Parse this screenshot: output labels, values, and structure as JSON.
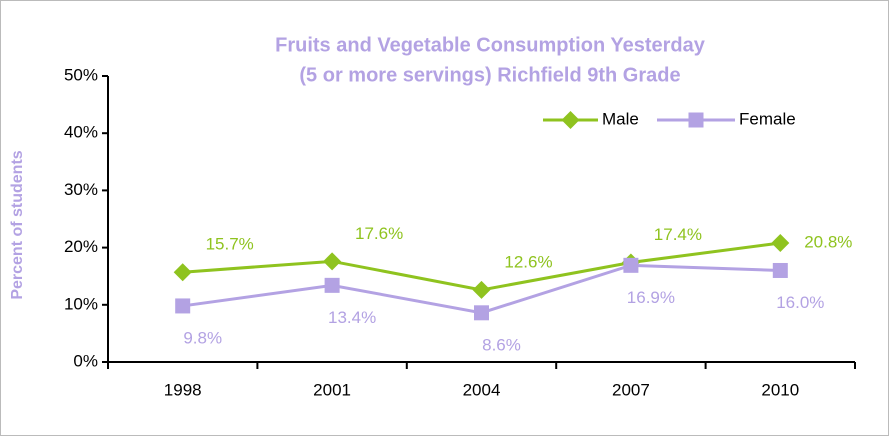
{
  "chart_data": {
    "type": "line",
    "title": [
      "Fruits and Vegetable Consumption Yesterday",
      "(5 or more servings) Richfield 9th Grade"
    ],
    "y_label": "Percent of students",
    "categories": [
      "1998",
      "2001",
      "2004",
      "2007",
      "2010"
    ],
    "series": [
      {
        "name": "Male",
        "color": "#8fc31f",
        "marker": "diamond",
        "values": [
          15.7,
          17.6,
          12.6,
          17.4,
          20.8
        ],
        "value_labels": [
          "15.7%",
          "17.6%",
          "12.6%",
          "17.4%",
          "20.8%"
        ]
      },
      {
        "name": "Female",
        "color": "#b3a2e3",
        "marker": "square",
        "values": [
          9.8,
          13.4,
          8.6,
          16.9,
          16.0
        ],
        "value_labels": [
          "9.8%",
          "13.4%",
          "8.6%",
          "16.9%",
          "16.0%"
        ]
      }
    ],
    "ylim": [
      0,
      50
    ],
    "yticks": [
      {
        "value": 0,
        "label": "0%"
      },
      {
        "value": 10,
        "label": "10%"
      },
      {
        "value": 20,
        "label": "20%"
      },
      {
        "value": 30,
        "label": "30%"
      },
      {
        "value": 40,
        "label": "40%"
      },
      {
        "value": 50,
        "label": "50%"
      }
    ],
    "grid": false,
    "legend": "top-right"
  }
}
